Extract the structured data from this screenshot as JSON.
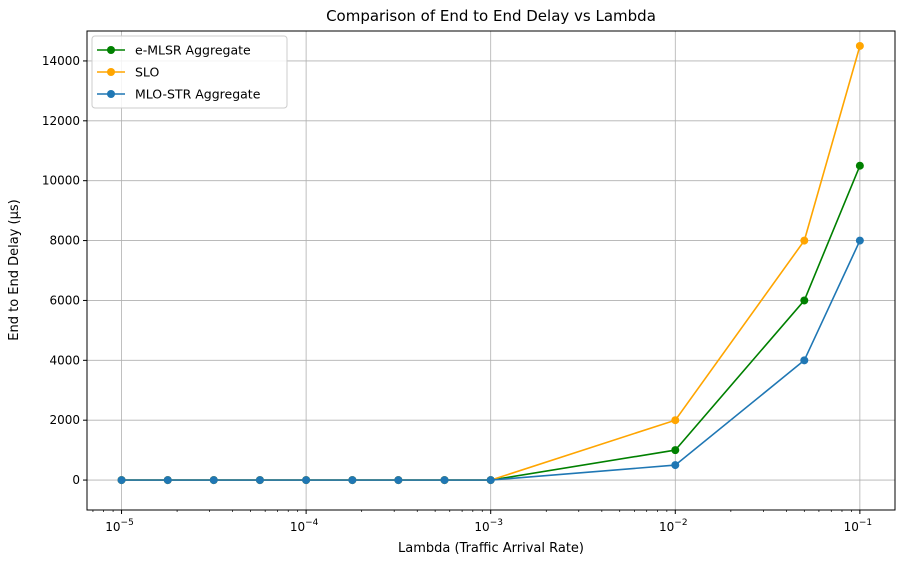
{
  "chart_data": {
    "type": "line",
    "title": "Comparison of End to End Delay vs Lambda",
    "xlabel": "Lambda (Traffic Arrival Rate)",
    "ylabel": "End to End Delay (µs)",
    "xscale": "log",
    "xlim": [
      6.5e-06,
      0.155
    ],
    "ylim": [
      -1000,
      15000
    ],
    "grid": true,
    "legend_position": "top-left",
    "x": [
      1e-05,
      1.78e-05,
      3.16e-05,
      5.62e-05,
      0.0001,
      0.000178,
      0.000316,
      0.000562,
      0.001,
      0.01,
      0.05,
      0.1
    ],
    "series": [
      {
        "name": "e-MLSR Aggregate",
        "color": "#008000",
        "values": [
          0,
          0,
          0,
          0,
          0,
          0,
          0,
          0,
          0,
          1000,
          6000,
          10500
        ]
      },
      {
        "name": "SLO",
        "color": "#ffa500",
        "values": [
          0,
          0,
          0,
          0,
          0,
          0,
          0,
          0,
          0,
          2000,
          8000,
          14500
        ]
      },
      {
        "name": "MLO-STR Aggregate",
        "color": "#1f77b4",
        "values": [
          0,
          0,
          0,
          0,
          0,
          0,
          0,
          0,
          0,
          500,
          4000,
          8000
        ]
      }
    ],
    "x_ticks": [
      {
        "value": 1e-05,
        "base": "10",
        "exp": "−5"
      },
      {
        "value": 0.0001,
        "base": "10",
        "exp": "−4"
      },
      {
        "value": 0.001,
        "base": "10",
        "exp": "−3"
      },
      {
        "value": 0.01,
        "base": "10",
        "exp": "−2"
      },
      {
        "value": 0.1,
        "base": "10",
        "exp": "−1"
      }
    ],
    "y_ticks": [
      0,
      2000,
      4000,
      6000,
      8000,
      10000,
      12000,
      14000
    ]
  }
}
